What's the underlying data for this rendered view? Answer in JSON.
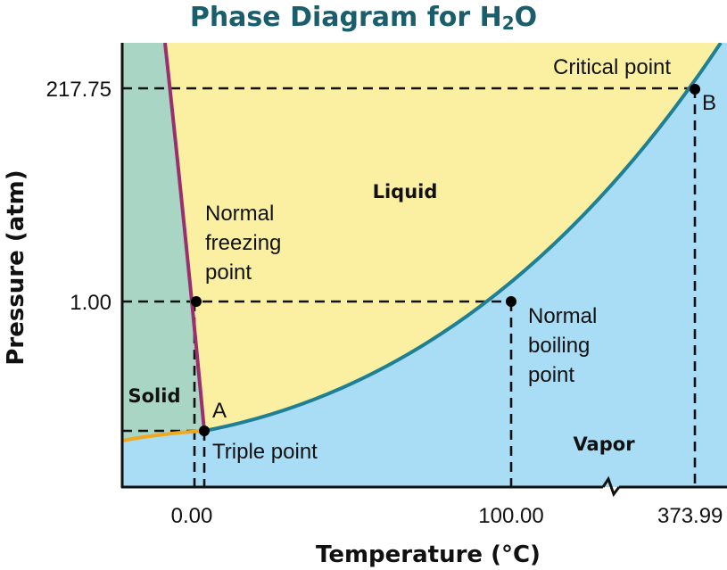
{
  "title": {
    "text": "Phase Diagram for H",
    "sub": "2",
    "tail": "O"
  },
  "axes": {
    "xlabel": "Temperature (°C)",
    "ylabel": "Pressure (atm)"
  },
  "ticks": {
    "y_top": "217.75",
    "y_mid": "1.00",
    "x_zero": "0.00",
    "x_boil": "100.00",
    "x_crit": "373.99"
  },
  "regions": {
    "solid": "Solid",
    "liquid": "Liquid",
    "vapor": "Vapor"
  },
  "annotations": {
    "freezing": [
      "Normal",
      "freezing",
      "point"
    ],
    "boiling": [
      "Normal",
      "boiling",
      "point"
    ],
    "triple": "Triple point",
    "critical": "Critical point",
    "label_a": "A",
    "label_b": "B"
  },
  "colors": {
    "solid": "#a8d5c4",
    "liquid": "#fbf0a2",
    "vapor": "#a9dcf5",
    "fusion_curve": "#9a2f6e",
    "vaporization_curve": "#1f7f94",
    "sublimation_curve": "#f0a81e",
    "title": "#1b5e6b"
  }
}
